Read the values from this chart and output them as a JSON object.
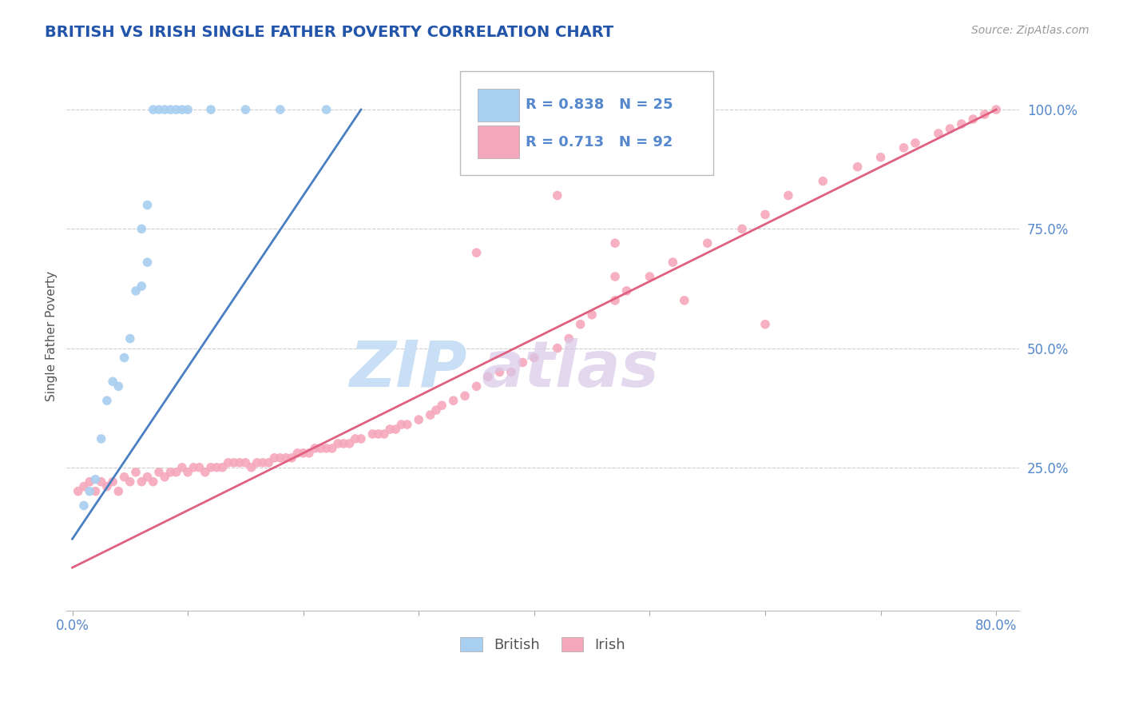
{
  "title": "BRITISH VS IRISH SINGLE FATHER POVERTY CORRELATION CHART",
  "source": "Source: ZipAtlas.com",
  "ylabel": "Single Father Poverty",
  "british_R": 0.838,
  "british_N": 25,
  "irish_R": 0.713,
  "irish_N": 92,
  "british_color": "#a8cef0",
  "irish_color": "#f5a8bc",
  "british_line_color": "#4a7fc1",
  "irish_line_color": "#e06080",
  "title_color": "#2255aa",
  "axis_color": "#5588cc",
  "source_color": "#999999",
  "background_color": "#ffffff",
  "grid_color": "#cccccc",
  "watermark_color_zip": "#c8dff5",
  "watermark_color_atlas": "#c8dff5",
  "xlim": [
    -0.005,
    0.82
  ],
  "ylim": [
    -0.05,
    1.1
  ],
  "xtick_positions": [
    0.0,
    0.1,
    0.2,
    0.3,
    0.4,
    0.5,
    0.6,
    0.7,
    0.8
  ],
  "xtick_labels": [
    "0.0%",
    "",
    "",
    "",
    "",
    "",
    "",
    "",
    "80.0%"
  ],
  "ytick_positions": [
    0.25,
    0.5,
    0.75,
    1.0
  ],
  "ytick_labels": [
    "25.0%",
    "50.0%",
    "75.0%",
    "100.0%"
  ],
  "british_x": [
    0.01,
    0.015,
    0.02,
    0.025,
    0.03,
    0.035,
    0.04,
    0.045,
    0.05,
    0.055,
    0.06,
    0.065,
    0.06,
    0.065,
    0.07,
    0.075,
    0.08,
    0.085,
    0.09,
    0.095,
    0.1,
    0.12,
    0.15,
    0.18,
    0.22
  ],
  "british_y": [
    0.17,
    0.2,
    0.225,
    0.31,
    0.39,
    0.43,
    0.42,
    0.48,
    0.52,
    0.62,
    0.63,
    0.68,
    0.75,
    0.8,
    1.0,
    1.0,
    1.0,
    1.0,
    1.0,
    1.0,
    1.0,
    1.0,
    1.0,
    1.0,
    1.0
  ],
  "irish_x": [
    0.005,
    0.01,
    0.015,
    0.02,
    0.025,
    0.03,
    0.035,
    0.04,
    0.045,
    0.05,
    0.055,
    0.06,
    0.065,
    0.07,
    0.075,
    0.08,
    0.085,
    0.09,
    0.095,
    0.1,
    0.105,
    0.11,
    0.115,
    0.12,
    0.125,
    0.13,
    0.135,
    0.14,
    0.145,
    0.15,
    0.155,
    0.16,
    0.165,
    0.17,
    0.175,
    0.18,
    0.185,
    0.19,
    0.195,
    0.2,
    0.205,
    0.21,
    0.215,
    0.22,
    0.225,
    0.23,
    0.235,
    0.24,
    0.245,
    0.25,
    0.26,
    0.265,
    0.27,
    0.275,
    0.28,
    0.285,
    0.29,
    0.3,
    0.31,
    0.315,
    0.32,
    0.33,
    0.34,
    0.35,
    0.36,
    0.37,
    0.38,
    0.39,
    0.4,
    0.42,
    0.43,
    0.44,
    0.45,
    0.47,
    0.48,
    0.5,
    0.52,
    0.55,
    0.58,
    0.6,
    0.62,
    0.65,
    0.68,
    0.7,
    0.72,
    0.73,
    0.75,
    0.76,
    0.77,
    0.78,
    0.79,
    0.8
  ],
  "irish_y": [
    0.2,
    0.21,
    0.22,
    0.2,
    0.22,
    0.21,
    0.22,
    0.2,
    0.23,
    0.22,
    0.24,
    0.22,
    0.23,
    0.22,
    0.24,
    0.23,
    0.24,
    0.24,
    0.25,
    0.24,
    0.25,
    0.25,
    0.24,
    0.25,
    0.25,
    0.25,
    0.26,
    0.26,
    0.26,
    0.26,
    0.25,
    0.26,
    0.26,
    0.26,
    0.27,
    0.27,
    0.27,
    0.27,
    0.28,
    0.28,
    0.28,
    0.29,
    0.29,
    0.29,
    0.29,
    0.3,
    0.3,
    0.3,
    0.31,
    0.31,
    0.32,
    0.32,
    0.32,
    0.33,
    0.33,
    0.34,
    0.34,
    0.35,
    0.36,
    0.37,
    0.38,
    0.39,
    0.4,
    0.42,
    0.44,
    0.45,
    0.45,
    0.47,
    0.48,
    0.5,
    0.52,
    0.55,
    0.57,
    0.6,
    0.62,
    0.65,
    0.68,
    0.72,
    0.75,
    0.78,
    0.82,
    0.85,
    0.88,
    0.9,
    0.92,
    0.93,
    0.95,
    0.96,
    0.97,
    0.98,
    0.99,
    1.0
  ],
  "irish_outlier_x": [
    0.35,
    0.42,
    0.47,
    0.47,
    0.53,
    0.6
  ],
  "irish_outlier_y": [
    0.7,
    0.82,
    0.65,
    0.72,
    0.6,
    0.55
  ],
  "irish_line_x0": 0.0,
  "irish_line_x1": 0.8,
  "irish_line_y0": 0.04,
  "irish_line_y1": 1.0,
  "british_line_x0": 0.0,
  "british_line_x1": 0.25,
  "british_line_y0": 0.1,
  "british_line_y1": 1.0
}
